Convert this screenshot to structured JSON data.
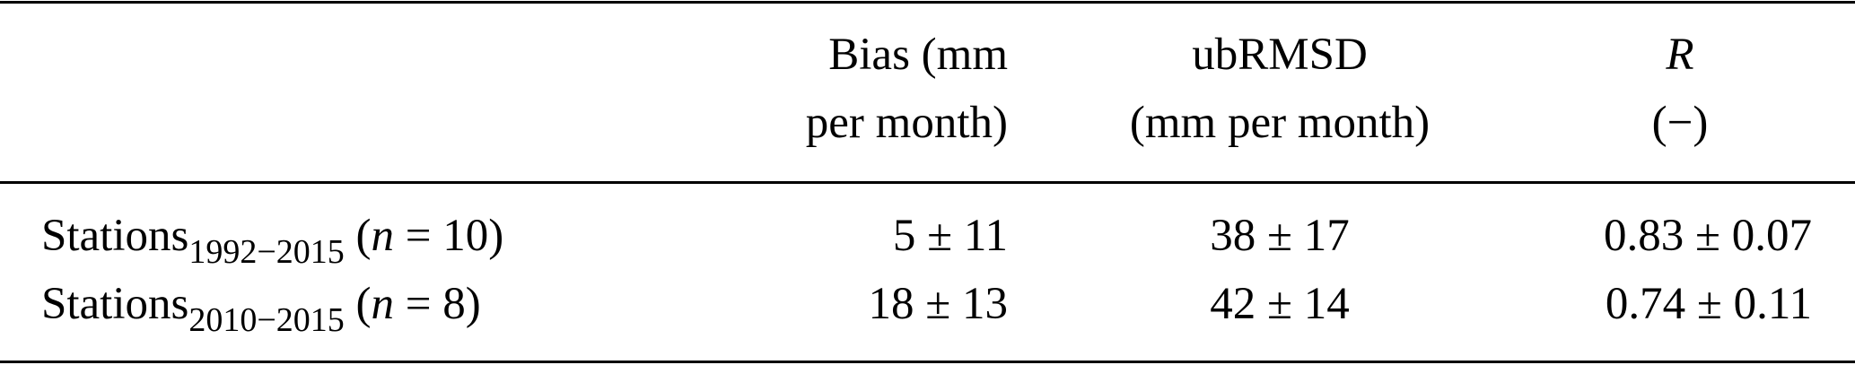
{
  "table": {
    "headers": [
      {
        "line1": "",
        "line2": ""
      },
      {
        "line1": "Bias (mm",
        "line2": "per month)"
      },
      {
        "line1": "ubRMSD",
        "line2": "(mm per month)"
      },
      {
        "line1": "R",
        "line2": "(−)"
      }
    ],
    "rows": [
      {
        "label": "Stations",
        "subscript": "1992−2015",
        "n_open": "(",
        "n_var": "n",
        "n_rest": " = 10)",
        "bias": "5 ± 11",
        "ubrmsd": "38 ± 17",
        "r": "0.83 ± 0.07"
      },
      {
        "label": "Stations",
        "subscript": "2010−2015",
        "n_open": "(",
        "n_var": "n",
        "n_rest": " = 8)",
        "bias": "18 ± 13",
        "ubrmsd": "42 ± 14",
        "r": "0.74 ± 0.11"
      }
    ]
  }
}
